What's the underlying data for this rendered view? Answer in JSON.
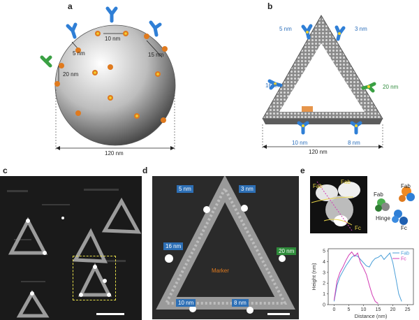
{
  "panels": {
    "a": {
      "label": "a",
      "dims": [
        "10 nm",
        "5 nm",
        "15 nm",
        "20 nm"
      ],
      "width": "120 nm"
    },
    "b": {
      "label": "b",
      "dims": [
        "5 nm",
        "3 nm",
        "16 nm",
        "20 nm",
        "10 nm",
        "8 nm"
      ],
      "width": "120 nm"
    },
    "c": {
      "label": "c"
    },
    "d": {
      "label": "d",
      "tags": [
        "5 nm",
        "3 nm",
        "16 nm",
        "20 nm",
        "10 nm",
        "8 nm"
      ],
      "marker": "Marker"
    },
    "e": {
      "label": "e",
      "afm": {
        "fab1": "Fab",
        "fab2": "Fab",
        "fc": "Fc"
      },
      "model": {
        "fab_left": "Fab",
        "fab_right": "Fab",
        "hinge": "Hinge",
        "fc": "Fc"
      }
    }
  },
  "chart_data": {
    "type": "line",
    "xlabel": "Distance (nm)",
    "ylabel": "Height (nm)",
    "xlim": [
      -2,
      27
    ],
    "ylim": [
      0,
      5.2
    ],
    "xticks": [
      0,
      5,
      10,
      15,
      20,
      25
    ],
    "yticks": [
      0,
      1,
      2,
      3,
      4,
      5
    ],
    "legend_position": "top-right",
    "series": [
      {
        "name": "Fab",
        "color": "#4a9fd8",
        "x": [
          0,
          1,
          2,
          3,
          4,
          5,
          6,
          7,
          8,
          9,
          10,
          11,
          12,
          13,
          14,
          15,
          16,
          17,
          18,
          19,
          20,
          21,
          22,
          23
        ],
        "y": [
          0.3,
          1.8,
          2.6,
          3.1,
          3.6,
          4.0,
          4.4,
          4.6,
          4.5,
          4.2,
          3.9,
          3.6,
          3.5,
          4.0,
          4.3,
          4.4,
          4.6,
          4.2,
          4.5,
          4.8,
          3.9,
          2.5,
          1.0,
          0.3
        ]
      },
      {
        "name": "Fc",
        "color": "#d23cb4",
        "x": [
          0,
          1,
          2,
          3,
          4,
          5,
          6,
          7,
          8,
          9,
          10,
          11,
          12,
          13,
          14,
          15
        ],
        "y": [
          0.4,
          2.2,
          3.0,
          3.5,
          4.1,
          4.6,
          4.9,
          4.5,
          4.8,
          3.9,
          3.4,
          2.8,
          1.8,
          0.9,
          0.3,
          0.1
        ]
      }
    ]
  }
}
